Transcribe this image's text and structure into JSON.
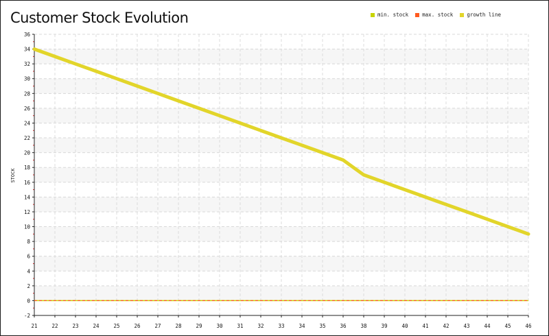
{
  "chart_data": {
    "type": "line",
    "title": "Customer Stock Evolution",
    "xlabel": "",
    "ylabel": "STOCK",
    "x_ticks": [
      "21",
      "22",
      "23",
      "24",
      "25",
      "26",
      "27",
      "28",
      "29",
      "30",
      "31",
      "32",
      "33",
      "34",
      "35",
      "36",
      "38",
      "39",
      "40",
      "41",
      "42",
      "43",
      "44",
      "45",
      "46"
    ],
    "y_ticks": [
      -2,
      0,
      2,
      4,
      6,
      8,
      10,
      12,
      14,
      16,
      18,
      20,
      22,
      24,
      26,
      28,
      30,
      32,
      34,
      36
    ],
    "ylim": [
      -2,
      36
    ],
    "grid": true,
    "legend_position": "top-right",
    "legend": [
      {
        "label": "MIN. STOCK",
        "color": "#c8d400"
      },
      {
        "label": "MAX. STOCK",
        "color": "#ff5a1f"
      },
      {
        "label": "GROWTH LINE",
        "color": "#e2d52a"
      }
    ],
    "series": [
      {
        "name": "GROWTH LINE",
        "color": "#e2d52a",
        "x": [
          "21",
          "22",
          "23",
          "24",
          "25",
          "26",
          "27",
          "28",
          "29",
          "30",
          "31",
          "32",
          "33",
          "34",
          "35",
          "36",
          "38",
          "39",
          "40",
          "41",
          "42",
          "43",
          "44",
          "45",
          "46"
        ],
        "y": [
          34,
          33,
          32,
          31,
          30,
          29,
          28,
          27,
          26,
          25,
          24,
          23,
          22,
          21,
          20,
          19,
          17,
          16,
          15,
          14,
          13,
          12,
          11,
          10,
          9
        ]
      },
      {
        "name": "MIN. STOCK",
        "color": "#c8d400",
        "x": [
          "21",
          "46"
        ],
        "y": [
          0,
          0
        ]
      },
      {
        "name": "MAX. STOCK",
        "color": "#ff5a1f",
        "x": [
          "21",
          "46"
        ],
        "y": [
          0,
          0
        ]
      }
    ]
  }
}
